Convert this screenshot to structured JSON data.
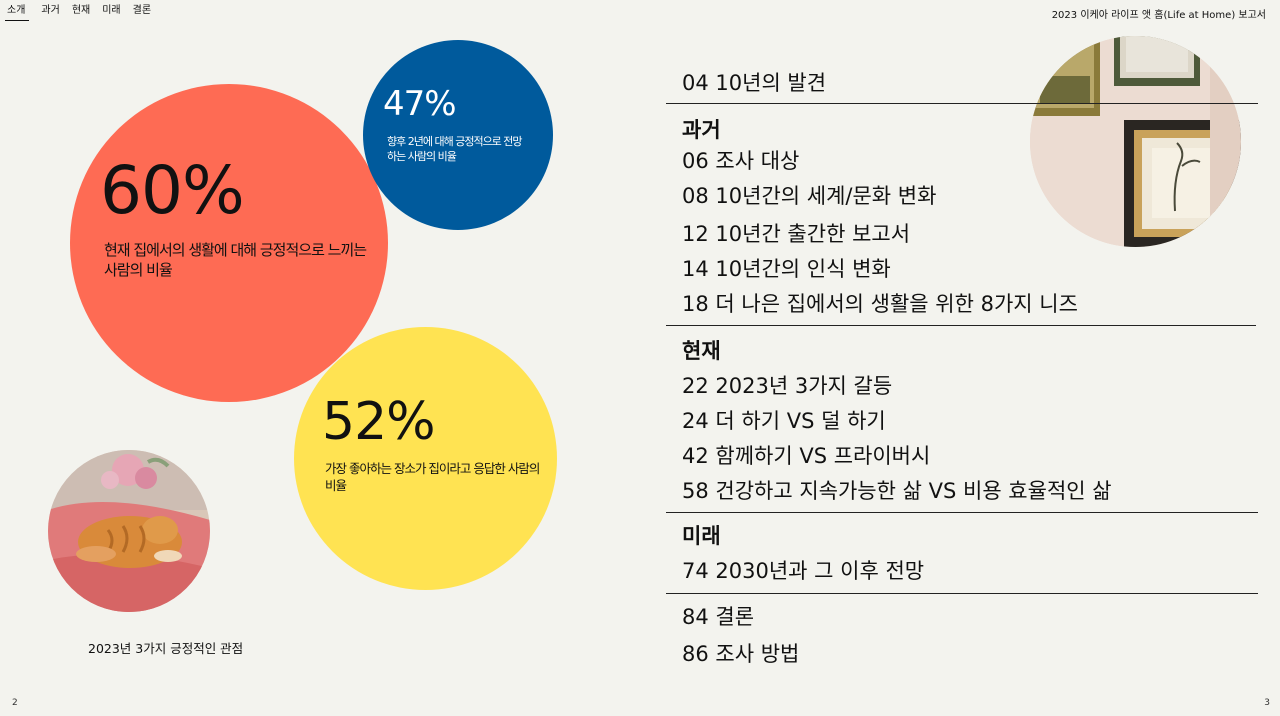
{
  "nav": {
    "items": [
      "소개",
      "과거",
      "현재",
      "미래",
      "결론"
    ]
  },
  "report_title": "2023 이케아 라이프 앳 홈(Life at Home) 보고서",
  "pages": {
    "left": "2",
    "right": "3"
  },
  "stats": {
    "red": {
      "value": "60%",
      "desc": "현재 집에서의 생활에 대해 긍정적으로 느끼는 사람의 비율",
      "color": "#fe6b54"
    },
    "blue": {
      "value": "47%",
      "desc": "향후 2년에 대해 긍정적으로 전망하는 사람의 비율",
      "color": "#005a9c"
    },
    "yellow": {
      "value": "52%",
      "desc": "가장 좋아하는 장소가 집이라고 응답한 사람의 비율",
      "color": "#ffe352"
    }
  },
  "caption": "2023년 3가지 긍정적인 관점",
  "toc": {
    "intro": "04 10년의 발견",
    "past_heading": "과거",
    "past": [
      "06 조사 대상",
      "08 10년간의 세계/문화 변화",
      "12 10년간 출간한 보고서",
      "14 10년간의 인식 변화",
      "18 더 나은 집에서의 생활을 위한 8가지 니즈"
    ],
    "present_heading": "현재",
    "present": [
      "22 2023년 3가지 갈등",
      "24 더 하기 VS 덜 하기",
      "42 함께하기 VS 프라이버시",
      "58 건강하고 지속가능한 삶 VS 비용 효율적인 삶"
    ],
    "future_heading": "미래",
    "future": [
      "74 2030년과 그 이후 전망"
    ],
    "end": [
      "84 결론",
      "86 조사 방법"
    ]
  },
  "colors": {
    "background": "#f3f3ee"
  }
}
